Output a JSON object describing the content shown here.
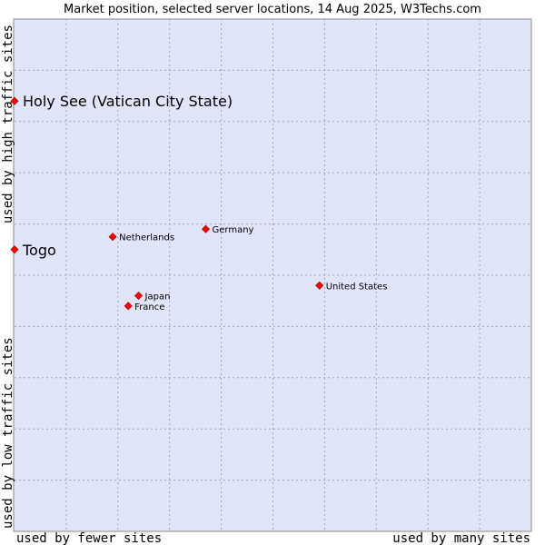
{
  "chart_data": {
    "type": "scatter",
    "title": "Market position, selected server locations, 14 Aug 2025, W3Techs.com",
    "xlabel_left": "used by fewer sites",
    "xlabel_right": "used by many sites",
    "ylabel_top": "used by high traffic sites",
    "ylabel_bottom": "used by low traffic sites",
    "xlim": [
      0,
      10
    ],
    "ylim": [
      0,
      10
    ],
    "grid": true,
    "marker_color": "#ff0000",
    "plot_background": "#e1e5f9",
    "points": [
      {
        "label": "Holy See (Vatican City State)",
        "x": 0.0,
        "y": 8.4,
        "emphasis": true
      },
      {
        "label": "Togo",
        "x": 0.0,
        "y": 5.5,
        "emphasis": true
      },
      {
        "label": "Netherlands",
        "x": 1.9,
        "y": 5.75,
        "emphasis": false
      },
      {
        "label": "Germany",
        "x": 3.7,
        "y": 5.9,
        "emphasis": false
      },
      {
        "label": "United States",
        "x": 5.9,
        "y": 4.8,
        "emphasis": false
      },
      {
        "label": "Japan",
        "x": 2.4,
        "y": 4.6,
        "emphasis": false
      },
      {
        "label": "France",
        "x": 2.2,
        "y": 4.4,
        "emphasis": false
      }
    ]
  }
}
